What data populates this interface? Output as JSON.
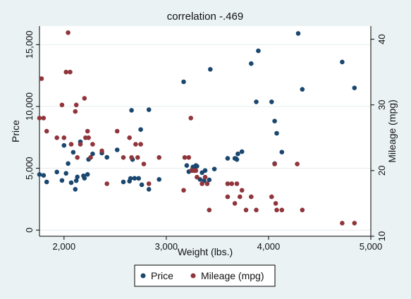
{
  "chart_data": {
    "type": "scatter",
    "title": "correlation -.469",
    "xlabel": "Weight (lbs.)",
    "ylabel": "Price",
    "y2label": "Mileage (mpg)",
    "xlim": [
      1760,
      5000
    ],
    "ylim": [
      -500,
      16500
    ],
    "y2lim": [
      10,
      42
    ],
    "x_ticks": [
      2000,
      3000,
      4000,
      5000
    ],
    "x_tick_labels": [
      "2,000",
      "3,000",
      "4,000",
      "5,000"
    ],
    "y_ticks": [
      0,
      5000,
      10000,
      15000
    ],
    "y_tick_labels": [
      "0",
      "5,000",
      "10,000",
      "15,000"
    ],
    "y2_ticks": [
      10,
      20,
      30,
      40
    ],
    "y2_tick_labels": [
      "10",
      "20",
      "30",
      "40"
    ],
    "grid": "horizontal, left axis",
    "legend_position": "bottom",
    "series": [
      {
        "name": "Price",
        "axis": "left",
        "color": "#1a476f",
        "points": [
          [
            1760,
            4499
          ],
          [
            1800,
            4425
          ],
          [
            1830,
            3895
          ],
          [
            1930,
            4697
          ],
          [
            1980,
            4010
          ],
          [
            2000,
            6850
          ],
          [
            2020,
            4589
          ],
          [
            2040,
            5379
          ],
          [
            2070,
            3829
          ],
          [
            2090,
            6295
          ],
          [
            2110,
            3299
          ],
          [
            2120,
            3995
          ],
          [
            2130,
            4296
          ],
          [
            2160,
            7140
          ],
          [
            2190,
            4389
          ],
          [
            2200,
            4195
          ],
          [
            2230,
            4504
          ],
          [
            2240,
            5719
          ],
          [
            2280,
            6165
          ],
          [
            2370,
            6229
          ],
          [
            2420,
            5886
          ],
          [
            2520,
            6486
          ],
          [
            2580,
            3895
          ],
          [
            2640,
            3955
          ],
          [
            2650,
            4172
          ],
          [
            2660,
            9690
          ],
          [
            2670,
            5705
          ],
          [
            2690,
            4187
          ],
          [
            2730,
            4181
          ],
          [
            2750,
            8129
          ],
          [
            2760,
            3667
          ],
          [
            2830,
            9735
          ],
          [
            2830,
            3299
          ],
          [
            2930,
            4099
          ],
          [
            3170,
            11995
          ],
          [
            3200,
            5222
          ],
          [
            3220,
            4723
          ],
          [
            3250,
            4847
          ],
          [
            3260,
            5104
          ],
          [
            3280,
            4890
          ],
          [
            3290,
            5222
          ],
          [
            3300,
            5166
          ],
          [
            3330,
            4098
          ],
          [
            3350,
            4647
          ],
          [
            3370,
            3995
          ],
          [
            3380,
            4816
          ],
          [
            3420,
            4060
          ],
          [
            3430,
            13001
          ],
          [
            3470,
            4934
          ],
          [
            3600,
            5798
          ],
          [
            3670,
            5799
          ],
          [
            3680,
            5788
          ],
          [
            3690,
            5705
          ],
          [
            3700,
            6165
          ],
          [
            3740,
            6342
          ],
          [
            3830,
            13466
          ],
          [
            3880,
            10371
          ],
          [
            3900,
            14500
          ],
          [
            4030,
            10372
          ],
          [
            4060,
            8814
          ],
          [
            4060,
            5379
          ],
          [
            4080,
            7827
          ],
          [
            4130,
            6303
          ],
          [
            4290,
            15906
          ],
          [
            4330,
            11385
          ],
          [
            4720,
            13594
          ],
          [
            4840,
            11497
          ]
        ]
      },
      {
        "name": "Mileage (mpg)",
        "axis": "right",
        "color": "#90353b",
        "points": [
          [
            1760,
            28
          ],
          [
            1780,
            34
          ],
          [
            1800,
            28
          ],
          [
            1830,
            26
          ],
          [
            1930,
            25
          ],
          [
            1980,
            30
          ],
          [
            2000,
            25
          ],
          [
            2020,
            35
          ],
          [
            2040,
            41
          ],
          [
            2060,
            35
          ],
          [
            2070,
            24
          ],
          [
            2110,
            29
          ],
          [
            2120,
            30
          ],
          [
            2130,
            22
          ],
          [
            2160,
            24
          ],
          [
            2200,
            31
          ],
          [
            2210,
            25
          ],
          [
            2230,
            26
          ],
          [
            2240,
            25
          ],
          [
            2260,
            22
          ],
          [
            2280,
            24
          ],
          [
            2370,
            23
          ],
          [
            2420,
            18
          ],
          [
            2520,
            26
          ],
          [
            2580,
            22
          ],
          [
            2640,
            25
          ],
          [
            2660,
            22
          ],
          [
            2700,
            24
          ],
          [
            2720,
            22
          ],
          [
            2750,
            24
          ],
          [
            2780,
            21
          ],
          [
            2830,
            18
          ],
          [
            2930,
            22
          ],
          [
            3170,
            17
          ],
          [
            3180,
            22
          ],
          [
            3220,
            22
          ],
          [
            3240,
            28
          ],
          [
            3250,
            20
          ],
          [
            3270,
            20
          ],
          [
            3280,
            20
          ],
          [
            3290,
            20
          ],
          [
            3300,
            19
          ],
          [
            3350,
            18
          ],
          [
            3380,
            19
          ],
          [
            3400,
            18
          ],
          [
            3420,
            14
          ],
          [
            3600,
            18
          ],
          [
            3600,
            16
          ],
          [
            3640,
            18
          ],
          [
            3670,
            15
          ],
          [
            3690,
            18
          ],
          [
            3720,
            16
          ],
          [
            3740,
            17
          ],
          [
            3780,
            14
          ],
          [
            3830,
            16
          ],
          [
            3880,
            14
          ],
          [
            4030,
            16
          ],
          [
            4060,
            21
          ],
          [
            4070,
            15
          ],
          [
            4080,
            14
          ],
          [
            4130,
            14
          ],
          [
            4280,
            21
          ],
          [
            4330,
            14
          ],
          [
            4720,
            12
          ],
          [
            4840,
            12
          ]
        ]
      }
    ]
  }
}
